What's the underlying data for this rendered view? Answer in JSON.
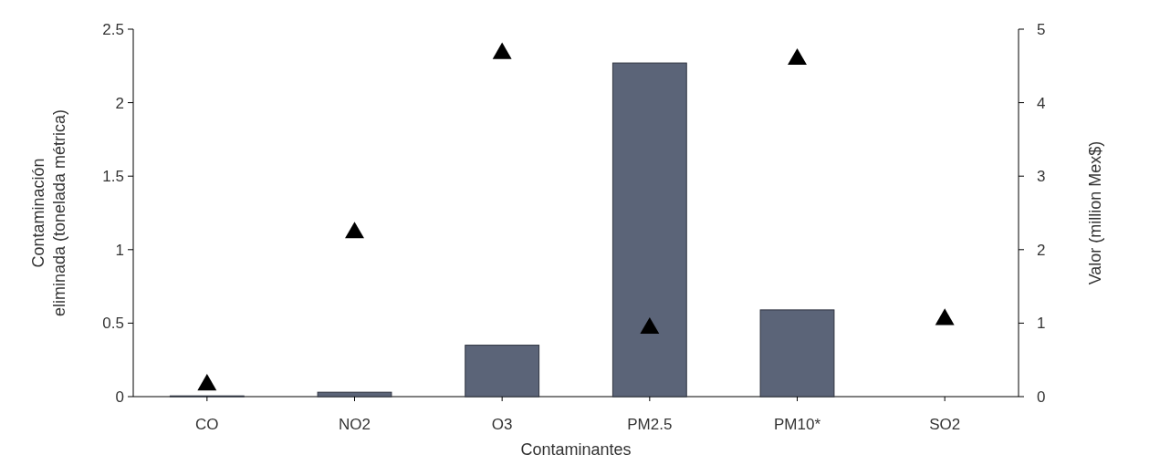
{
  "chart_data": {
    "type": "bar",
    "xlabel": "Contaminantes",
    "ylabel": "Contaminación\neliminada (tonelada métrica)",
    "y2label": "Valor (million Mex$)",
    "categories": [
      "CO",
      "NO2",
      "O3",
      "PM2.5",
      "PM10*",
      "SO2"
    ],
    "series": [
      {
        "color": "#5b6478",
        "values": [
          0.005,
          0.03,
          0.35,
          2.27,
          0.59,
          0
        ]
      },
      {
        "type": "scatter",
        "axis": "y2",
        "color": "#000000",
        "marker": "triangle",
        "values": [
          0.16,
          2.23,
          4.67,
          0.93,
          4.59,
          1.05
        ]
      }
    ],
    "ylim": [
      0,
      2.5
    ],
    "yticks": [
      0,
      0.5,
      1,
      1.5,
      2,
      2.5
    ],
    "y2lim": [
      0,
      5
    ],
    "y2ticks": [
      0,
      1,
      2,
      3,
      4,
      5
    ],
    "grid": false
  }
}
